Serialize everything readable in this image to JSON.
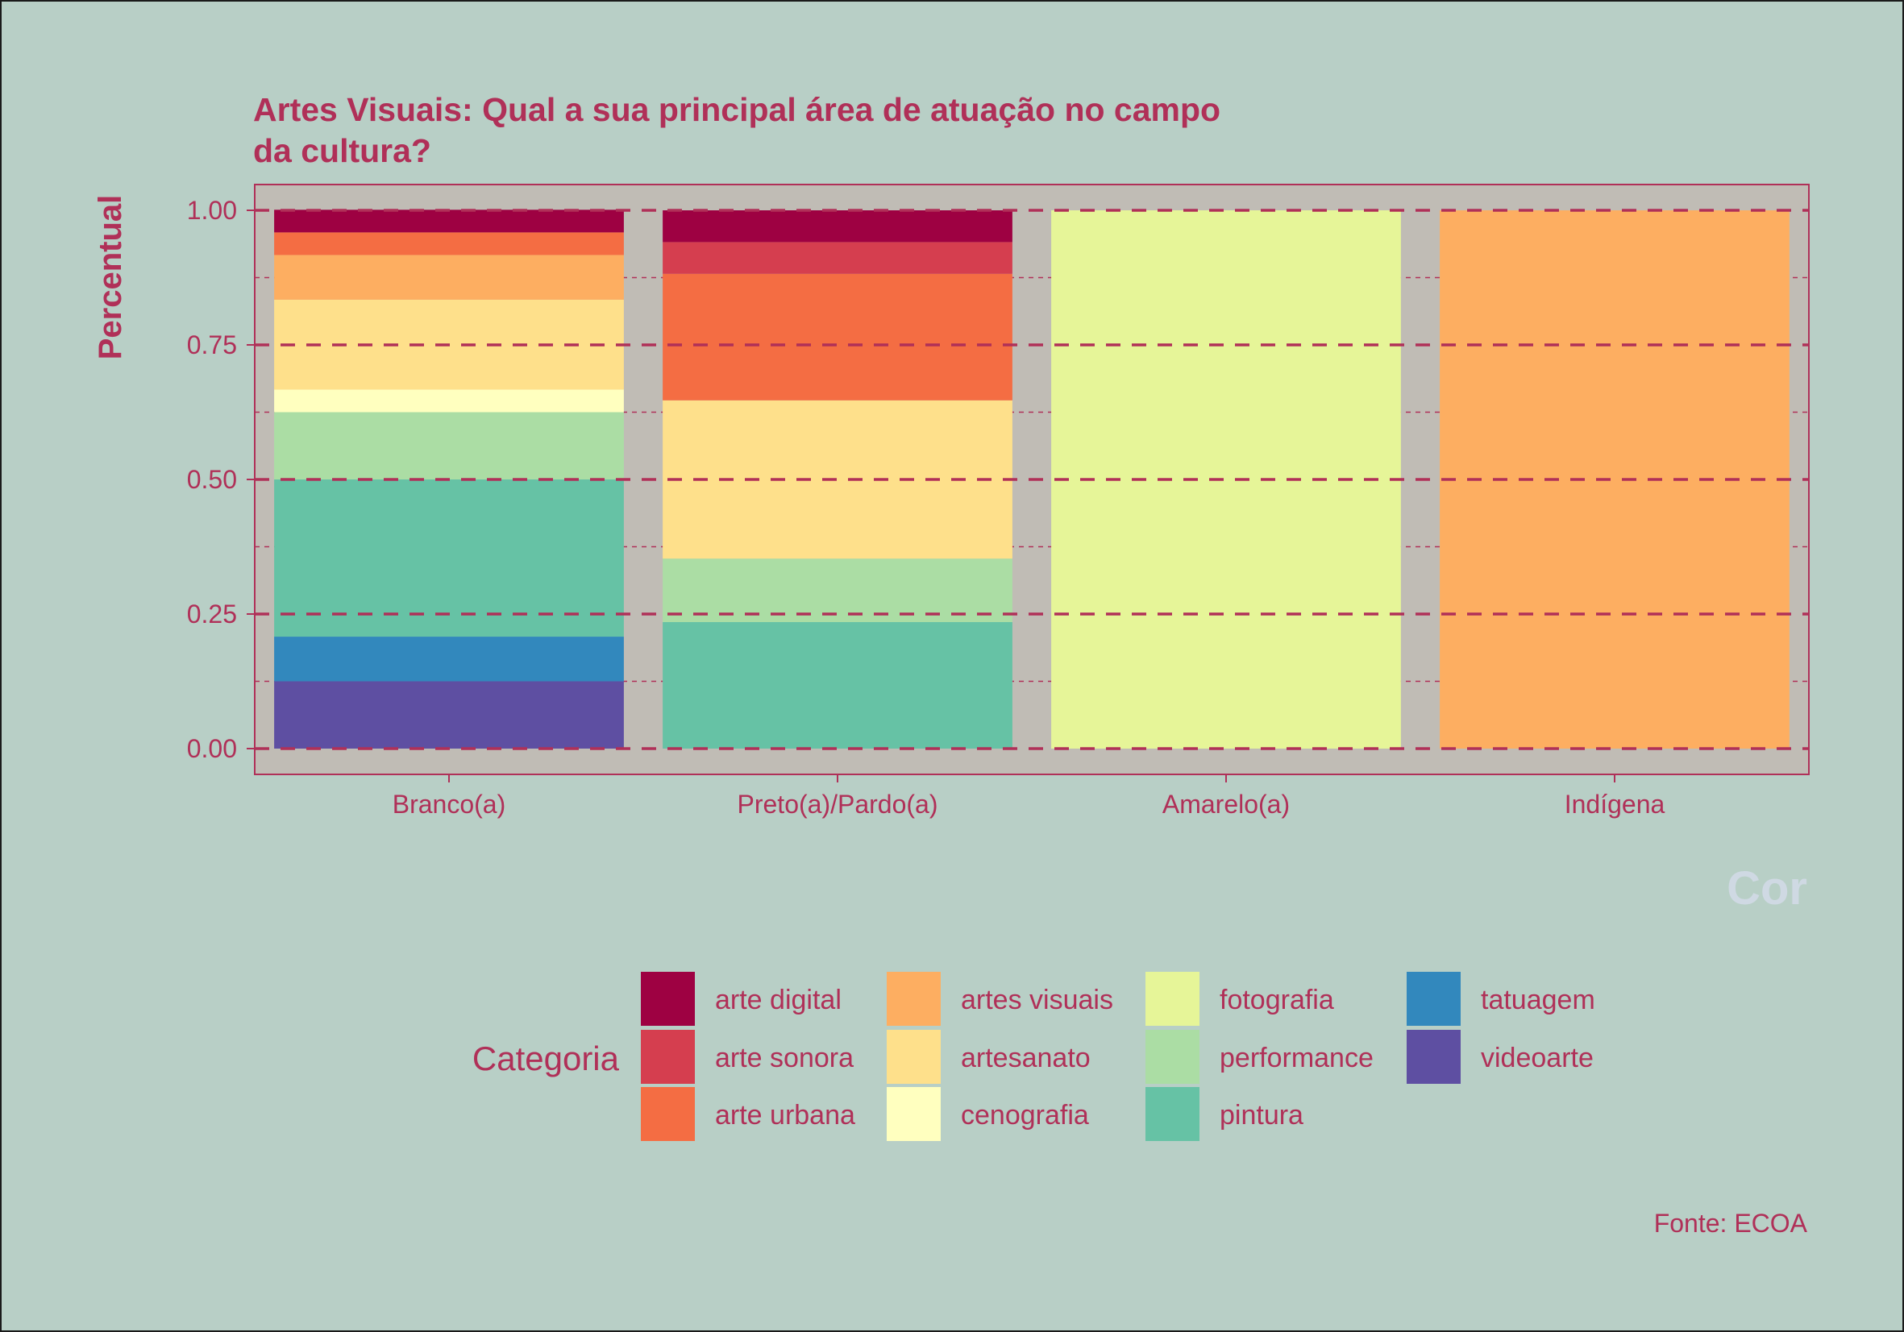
{
  "chart_data": {
    "type": "bar",
    "stacked": true,
    "title": "Artes Visuais: Qual a sua principal área de atuação no campo da cultura?",
    "title_lines": [
      "Artes Visuais: Qual a sua principal área de atuação no campo",
      "da cultura?"
    ],
    "xlabel": "Cor",
    "ylabel": "Percentual",
    "ylim": [
      0,
      1
    ],
    "y_ticks": [
      "0.00",
      "0.25",
      "0.50",
      "0.75",
      "1.00"
    ],
    "categories": [
      "Branco(a)",
      "Preto(a)/Pardo(a)",
      "Amarelo(a)",
      "Indígena"
    ],
    "grid": true,
    "legend": {
      "title": "Categoria",
      "position": "bottom"
    },
    "caption": "Fonte: ECOA",
    "series": [
      {
        "name": "arte digital",
        "color": "#9e0142",
        "values": [
          0.042,
          0.059,
          0,
          0
        ]
      },
      {
        "name": "arte sonora",
        "color": "#d53e4f",
        "values": [
          0,
          0.059,
          0,
          0
        ]
      },
      {
        "name": "arte urbana",
        "color": "#f46d43",
        "values": [
          0.042,
          0.235,
          0,
          0
        ]
      },
      {
        "name": "artes visuais",
        "color": "#fdae61",
        "values": [
          0.083,
          0,
          0,
          1
        ]
      },
      {
        "name": "artesanato",
        "color": "#fee08b",
        "values": [
          0.167,
          0.294,
          0,
          0
        ]
      },
      {
        "name": "cenografia",
        "color": "#ffffbf",
        "values": [
          0.042,
          0,
          0,
          0
        ]
      },
      {
        "name": "fotografia",
        "color": "#e6f598",
        "values": [
          0,
          0,
          1,
          0
        ]
      },
      {
        "name": "performance",
        "color": "#abdda4",
        "values": [
          0.125,
          0.118,
          0,
          0
        ]
      },
      {
        "name": "pintura",
        "color": "#66c2a5",
        "values": [
          0.292,
          0.235,
          0,
          0
        ]
      },
      {
        "name": "tatuagem",
        "color": "#3288bd",
        "values": [
          0.083,
          0,
          0,
          0
        ]
      },
      {
        "name": "videoarte",
        "color": "#5e4fa2",
        "values": [
          0.125,
          0,
          0,
          0
        ]
      }
    ],
    "colors": {
      "panel": "#c0bcb5",
      "background": "#b8cfc6",
      "accent": "#b03058"
    }
  }
}
